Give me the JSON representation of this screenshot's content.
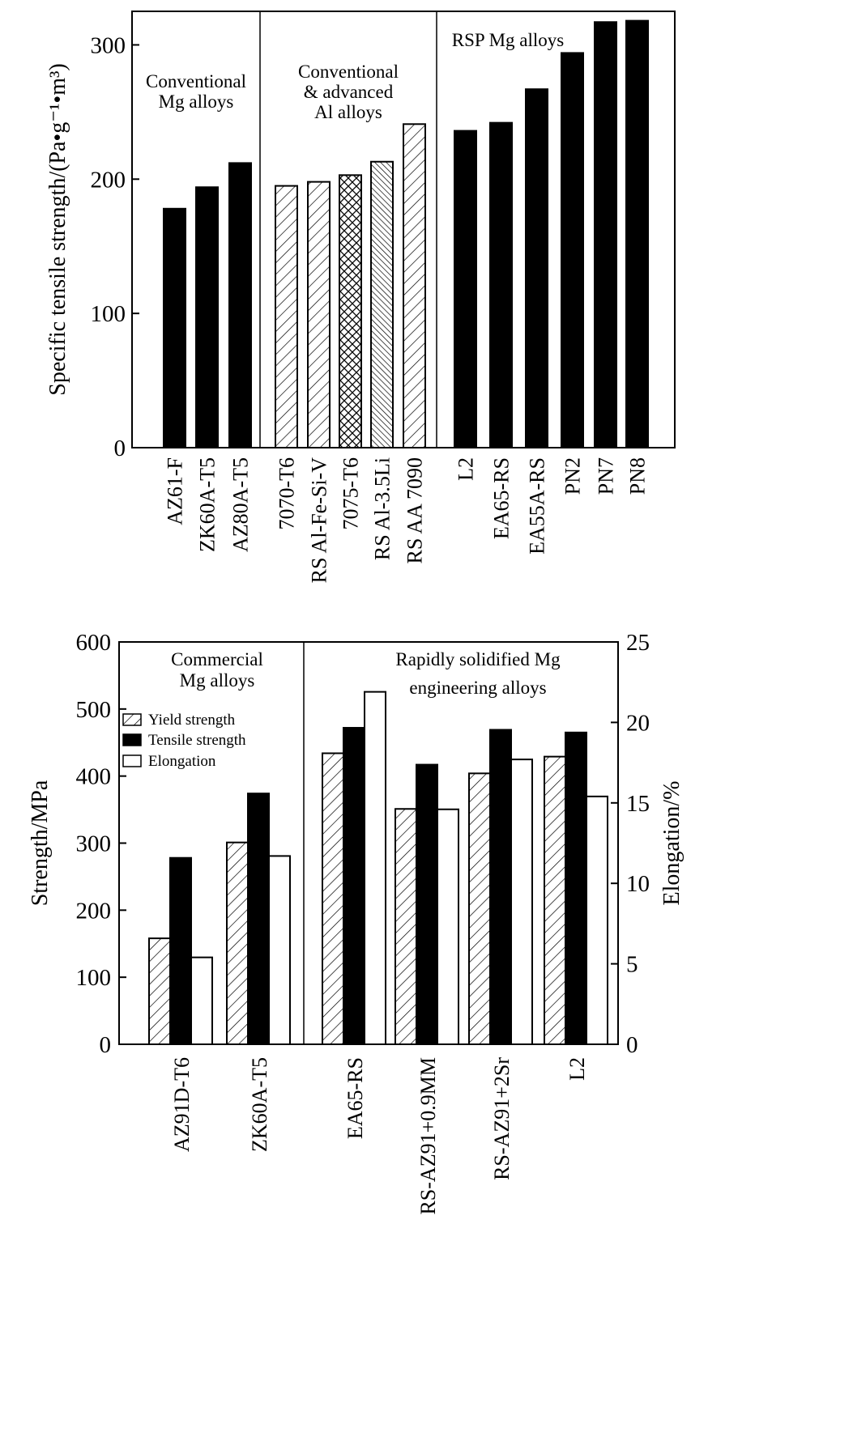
{
  "chart_data": [
    {
      "type": "bar",
      "ylabel": "Specific tensile strength/(Pa•g⁻¹•m³)",
      "ylim": [
        0,
        325
      ],
      "yticks": [
        0,
        100,
        200,
        300
      ],
      "grid": false,
      "categories": [
        "AZ61-F",
        "ZK60A-T5",
        "AZ80A-T5",
        "7070-T6",
        "RS Al-Fe-Si-V",
        "7075-T6",
        "RS Al-3.5Li",
        "RS AA 7090",
        "L2",
        "EA65-RS",
        "EA55A-RS",
        "PN2",
        "PN7",
        "PN8"
      ],
      "values": [
        178,
        194,
        212,
        195,
        198,
        203,
        213,
        241,
        236,
        242,
        267,
        294,
        317,
        318
      ],
      "groups": [
        {
          "label_lines": [
            "Conventional",
            "Mg alloys"
          ],
          "count": 3
        },
        {
          "label_lines": [
            "Conventional",
            "& advanced",
            "Al alloys"
          ],
          "count": 5
        },
        {
          "label_lines": [
            "RSP Mg alloys"
          ],
          "count": 6
        }
      ],
      "fills": [
        "solid",
        "solid",
        "solid",
        "diag",
        "diag",
        "cross",
        "dense",
        "diag",
        "solid",
        "solid",
        "solid",
        "solid",
        "solid",
        "solid"
      ]
    },
    {
      "type": "bar",
      "ylabel": "Strength/MPa",
      "ylabel_right": "Elongation/%",
      "ylim": [
        0,
        600
      ],
      "yticks": [
        0,
        100,
        200,
        300,
        400,
        500,
        600
      ],
      "ylim_right": [
        0,
        25
      ],
      "yticks_right": [
        0,
        5,
        10,
        15,
        20,
        25
      ],
      "grid": false,
      "legend_position": "upper-left",
      "categories": [
        "AZ91D-T6",
        "ZK60A-T5",
        "EA65-RS",
        "RS-AZ91+0.9MM",
        "RS-AZ91+2Sr",
        "L2"
      ],
      "series": [
        {
          "name": "Yield strength",
          "axis": "left",
          "fill": "hatch",
          "values": [
            158,
            301,
            434,
            351,
            404,
            429
          ]
        },
        {
          "name": "Tensile strength",
          "axis": "left",
          "fill": "solid",
          "values": [
            278,
            374,
            472,
            417,
            469,
            465
          ]
        },
        {
          "name": "Elongation",
          "axis": "right",
          "fill": "open",
          "values": [
            5.4,
            11.7,
            21.9,
            14.6,
            17.7,
            15.4
          ]
        }
      ],
      "groups": [
        {
          "label_lines": [
            "Commercial",
            "Mg alloys"
          ],
          "count": 2
        },
        {
          "label_lines": [
            "Rapidly solidified Mg",
            "engineering alloys"
          ],
          "count": 4
        }
      ]
    }
  ]
}
